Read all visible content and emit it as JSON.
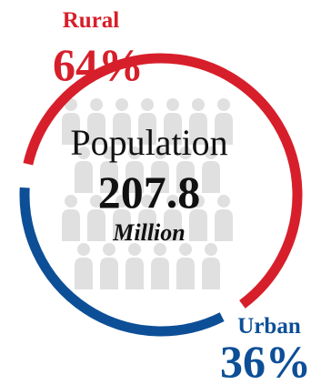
{
  "chart_data": {
    "type": "pie",
    "title": "Population",
    "total": 207.8,
    "total_label": "207.8",
    "unit": "Million",
    "slices": [
      {
        "name": "Rural",
        "value": 64,
        "label": "64%",
        "color": "#d71f2b"
      },
      {
        "name": "Urban",
        "value": 36,
        "label": "36%",
        "color": "#0d4f97"
      }
    ]
  },
  "background_icon": "people-silhouette-icon"
}
